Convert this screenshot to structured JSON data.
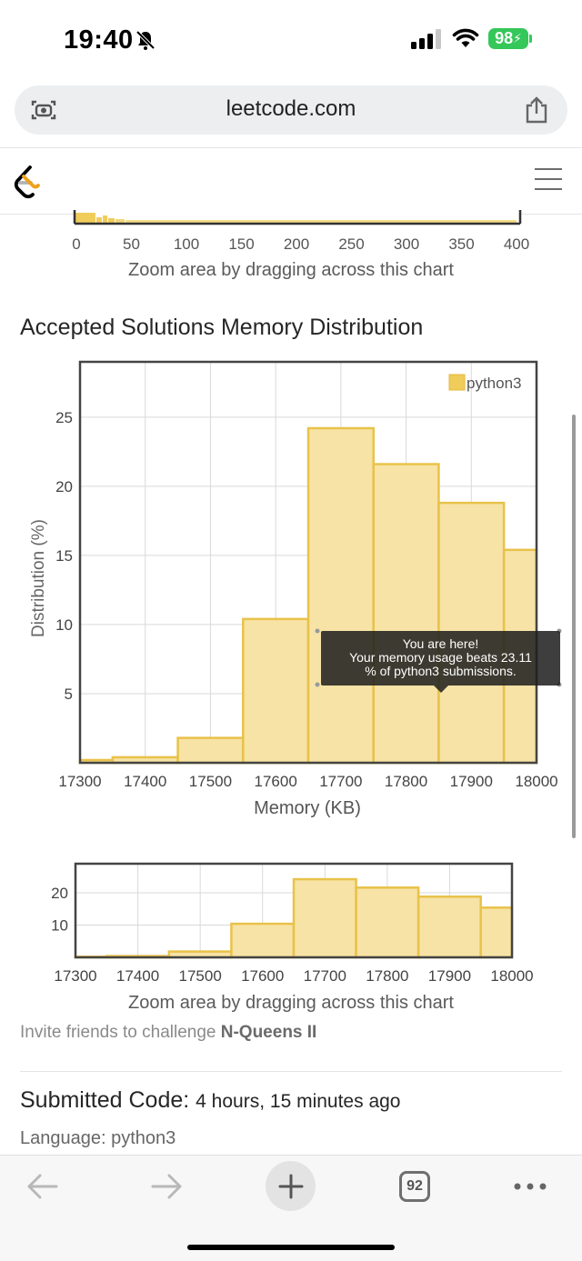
{
  "status_bar": {
    "time": "19:40",
    "battery": "98"
  },
  "browser": {
    "url": "leetcode.com",
    "open_tabs": "92"
  },
  "top_zoom_chart": {
    "x_ticks": [
      "0",
      "50",
      "100",
      "150",
      "200",
      "250",
      "300",
      "350",
      "400"
    ],
    "hint": "Zoom area by dragging across this chart"
  },
  "memory_section": {
    "title": "Accepted Solutions Memory Distribution"
  },
  "tooltip": {
    "line1": "You are here!",
    "line2": "Your memory usage beats 23.11",
    "line3": "% of python3 submissions."
  },
  "zoom_chart": {
    "hint": "Zoom area by dragging across this chart"
  },
  "invite": {
    "prefix": "Invite friends to challenge",
    "problem": "N-Queens II"
  },
  "submission": {
    "label": "Submitted Code:",
    "time_ago": "4 hours, 15 minutes ago",
    "language_text": "Language: python3"
  },
  "colors": {
    "bar_fill": "#f7e3a6",
    "bar_stroke": "#e8c24a",
    "battery": "#34c759"
  },
  "chart_data": [
    {
      "type": "bar",
      "title": "Accepted Solutions Memory Distribution",
      "xlabel": "Memory (KB)",
      "ylabel": "Distribution (%)",
      "x_ticks": [
        "17300",
        "17400",
        "17500",
        "17600",
        "17700",
        "17800",
        "17900",
        "18000"
      ],
      "y_ticks": [
        "5",
        "10",
        "15",
        "20",
        "25"
      ],
      "xlim": [
        17300,
        18000
      ],
      "ylim": [
        0,
        29
      ],
      "legend": "top-right",
      "grid": true,
      "series": [
        {
          "name": "python3",
          "bins": [
            {
              "start": 17300,
              "end": 17350,
              "value": 0.2
            },
            {
              "start": 17350,
              "end": 17450,
              "value": 0.4
            },
            {
              "start": 17450,
              "end": 17550,
              "value": 1.8
            },
            {
              "start": 17550,
              "end": 17650,
              "value": 10.4
            },
            {
              "start": 17650,
              "end": 17750,
              "value": 24.2
            },
            {
              "start": 17750,
              "end": 17850,
              "value": 21.6
            },
            {
              "start": 17850,
              "end": 17950,
              "value": 18.8
            },
            {
              "start": 17950,
              "end": 18010,
              "value": 15.4
            }
          ]
        }
      ]
    },
    {
      "type": "bar",
      "xlabel": "",
      "ylabel": "",
      "x_ticks": [
        "17300",
        "17400",
        "17500",
        "17600",
        "17700",
        "17800",
        "17900",
        "18000"
      ],
      "y_ticks": [
        "10",
        "20"
      ],
      "xlim": [
        17300,
        18000
      ],
      "ylim": [
        0,
        29
      ],
      "grid": true,
      "series": [
        {
          "name": "python3",
          "bins": [
            {
              "start": 17300,
              "end": 17350,
              "value": 0.2
            },
            {
              "start": 17350,
              "end": 17450,
              "value": 0.4
            },
            {
              "start": 17450,
              "end": 17550,
              "value": 1.8
            },
            {
              "start": 17550,
              "end": 17650,
              "value": 10.4
            },
            {
              "start": 17650,
              "end": 17750,
              "value": 24.2
            },
            {
              "start": 17750,
              "end": 17850,
              "value": 21.6
            },
            {
              "start": 17850,
              "end": 17950,
              "value": 18.8
            },
            {
              "start": 17950,
              "end": 18010,
              "value": 15.4
            }
          ]
        }
      ]
    }
  ]
}
